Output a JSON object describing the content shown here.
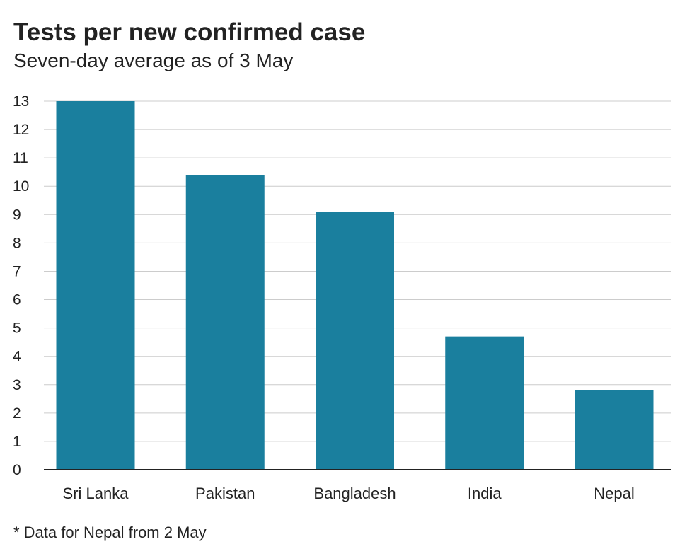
{
  "title": "Tests per new confirmed case",
  "subtitle": "Seven-day average as of 3 May",
  "footnote": "* Data for Nepal from 2 May",
  "colors": {
    "bar": "#1a7f9e",
    "grid": "#cccccc",
    "axis": "#222222"
  },
  "chart_data": {
    "type": "bar",
    "title": "Tests per new confirmed case",
    "subtitle": "Seven-day average as of 3 May",
    "xlabel": "",
    "ylabel": "",
    "categories": [
      "Sri Lanka",
      "Pakistan",
      "Bangladesh",
      "India",
      "Nepal"
    ],
    "values": [
      13.0,
      10.4,
      9.1,
      4.7,
      2.8
    ],
    "ylim": [
      0,
      13
    ],
    "yticks": [
      0,
      1,
      2,
      3,
      4,
      5,
      6,
      7,
      8,
      9,
      10,
      11,
      12,
      13
    ],
    "grid": true,
    "legend": "none"
  }
}
